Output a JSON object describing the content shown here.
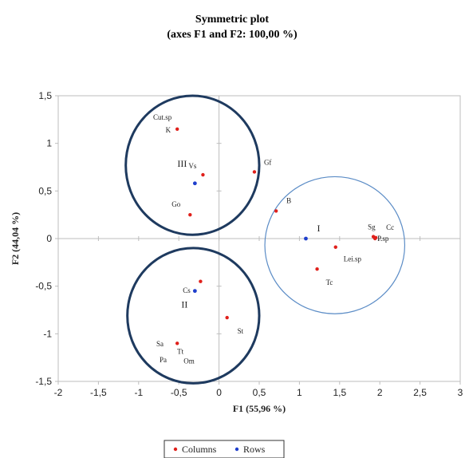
{
  "chart_data": {
    "type": "scatter",
    "title": "Symmetric plot",
    "subtitle": "(axes F1 and F2: 100,00 %)",
    "xlabel": "F1 (55,96 %)",
    "ylabel": "F2 (44,04 %)",
    "xlim": [
      -2,
      3
    ],
    "ylim": [
      -1.5,
      1.5
    ],
    "xticks": [
      "-2",
      "-1,5",
      "-1",
      "-0,5",
      "0",
      "0,5",
      "1",
      "1,5",
      "2",
      "2,5",
      "3"
    ],
    "yticks": [
      "-1,5",
      "-1",
      "-0,5",
      "0",
      "0,5",
      "1",
      "1,5"
    ],
    "grid": false,
    "legend_position": "bottom",
    "series": [
      {
        "name": "Columns",
        "color": "#e0201b",
        "points": [
          {
            "x": -0.52,
            "y": 1.15,
            "label": "K"
          },
          {
            "x": -0.2,
            "y": 0.67,
            "label": "Vs"
          },
          {
            "x": 0.44,
            "y": 0.7,
            "label": "Gf"
          },
          {
            "x": -0.36,
            "y": 0.25,
            "label": "Go"
          },
          {
            "x": 0.71,
            "y": 0.29,
            "label": "B"
          },
          {
            "x": 1.92,
            "y": 0.02,
            "label": "Sg"
          },
          {
            "x": 1.95,
            "y": 0.01,
            "label": "Cc"
          },
          {
            "x": 1.94,
            "y": 0.0,
            "label": "P.sp"
          },
          {
            "x": 1.45,
            "y": -0.09,
            "label": "Lei.sp"
          },
          {
            "x": 1.22,
            "y": -0.32,
            "label": "Tc"
          },
          {
            "x": -0.23,
            "y": -0.45,
            "label": ""
          },
          {
            "x": 0.1,
            "y": -0.83,
            "label": "St"
          },
          {
            "x": -0.52,
            "y": -1.1,
            "label": "Tt"
          }
        ]
      },
      {
        "name": "Rows",
        "color": "#1f3fcc",
        "points": [
          {
            "x": -0.3,
            "y": 0.58,
            "label": "III"
          },
          {
            "x": 1.08,
            "y": 0.0,
            "label": "I"
          },
          {
            "x": -0.3,
            "y": -0.55,
            "label": "II"
          }
        ]
      }
    ],
    "extra_labels": [
      {
        "text": "Cut.sp",
        "x": -0.82,
        "y": 1.25
      },
      {
        "text": "Cs",
        "x": -0.45,
        "y": -0.57
      },
      {
        "text": "Sa",
        "x": -0.78,
        "y": -1.13
      },
      {
        "text": "Pa",
        "x": -0.74,
        "y": -1.3
      },
      {
        "text": "Om",
        "x": -0.44,
        "y": -1.31
      }
    ],
    "ellipses": [
      {
        "cx": -0.33,
        "cy": 0.77,
        "rx": 0.83,
        "ry": 0.73,
        "color": "#1e3a5f",
        "width": 3
      },
      {
        "cx": -0.32,
        "cy": -0.81,
        "rx": 0.82,
        "ry": 0.71,
        "color": "#1e3a5f",
        "width": 3
      },
      {
        "cx": 1.44,
        "cy": -0.07,
        "rx": 0.87,
        "ry": 0.72,
        "color": "#5b8cc6",
        "width": 1.2
      }
    ]
  }
}
